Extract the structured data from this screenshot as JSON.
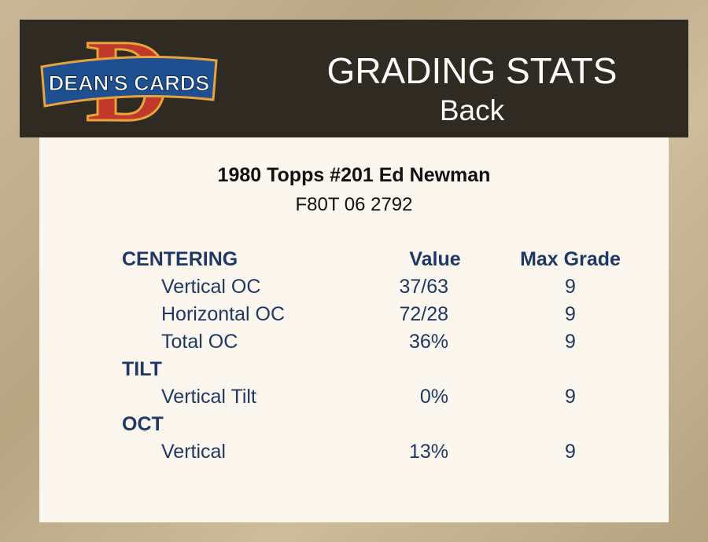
{
  "header": {
    "logo": {
      "letter": "D",
      "text": "DEAN'S CARDS"
    },
    "title": "GRADING STATS",
    "subtitle": "Back"
  },
  "card": {
    "name": "1980 Topps #201 Ed Newman",
    "serial": "F80T 06 2792"
  },
  "table": {
    "headers": [
      "Value",
      "Max Grade"
    ],
    "sections": [
      {
        "name": "CENTERING",
        "rows": [
          {
            "label": "Vertical OC",
            "value": "37/63",
            "max": "9"
          },
          {
            "label": "Horizontal OC",
            "value": "72/28",
            "max": "9"
          },
          {
            "label": "Total OC",
            "value": "36%",
            "max": "9"
          }
        ]
      },
      {
        "name": "TILT",
        "rows": [
          {
            "label": "Vertical Tilt",
            "value": "0%",
            "max": "9"
          }
        ]
      },
      {
        "name": "OCT",
        "rows": [
          {
            "label": "Vertical",
            "value": "13%",
            "max": "9"
          }
        ]
      }
    ]
  }
}
